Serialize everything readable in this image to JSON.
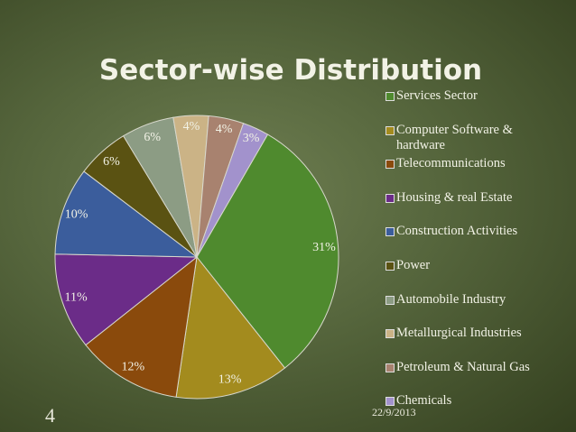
{
  "chart_data": {
    "type": "pie",
    "title": "Sector-wise Distribution",
    "categories": [
      "Services Sector",
      "Computer Software & hardware",
      "Telecommunications",
      "Housing & real Estate",
      "Construction Activities",
      "Power",
      "Automobile Industry",
      "Metallurgical Industries",
      "Petroleum & Natural Gas",
      "Chemicals"
    ],
    "values": [
      31,
      13,
      12,
      11,
      10,
      6,
      6,
      4,
      4,
      3
    ],
    "value_labels": [
      "31%",
      "13%",
      "12%",
      "11%",
      "10%",
      "6%",
      "6%",
      "4%",
      "4%",
      "3%"
    ],
    "colors": [
      "#4f8a2e",
      "#a38b1e",
      "#8a4a0c",
      "#6b2c88",
      "#3b5d9c",
      "#5a5212",
      "#8c9c84",
      "#cbb386",
      "#a8826f",
      "#a292cc"
    ],
    "legend": "right"
  },
  "slide": {
    "number": "4",
    "date": "22/9/2013"
  }
}
